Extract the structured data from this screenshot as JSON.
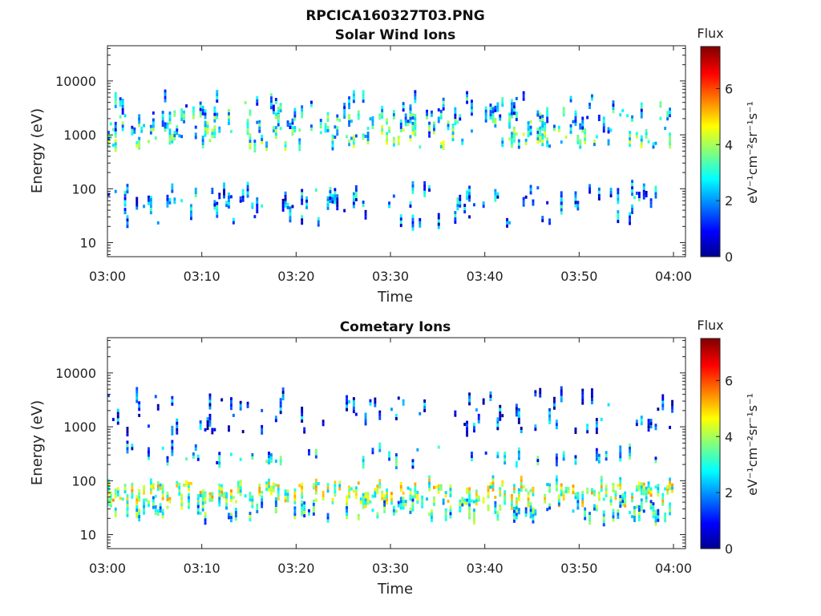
{
  "figure": {
    "title": "RPCICA160327T03.PNG"
  },
  "chart_data": [
    {
      "type": "heatmap",
      "title": "Solar Wind Ions",
      "xlabel": "Time",
      "ylabel": "Energy (eV)",
      "x_ticks": [
        "03:00",
        "03:10",
        "03:20",
        "03:30",
        "03:40",
        "03:50",
        "04:00"
      ],
      "x_range_minutes": [
        0,
        60
      ],
      "y_scale": "log",
      "y_ticks": [
        "10",
        "100",
        "1000",
        "10000"
      ],
      "y_range": [
        5.5,
        45000
      ],
      "colorbar": {
        "title": "Flux",
        "label": "eV⁻¹cm⁻²sr⁻¹s⁻¹",
        "ticks": [
          "0",
          "2",
          "4",
          "6"
        ],
        "range": [
          0,
          7.5
        ],
        "colormap": "jet"
      },
      "bands": [
        {
          "center_ev": 3500,
          "occupancy": 0.22,
          "mean_flux": 2.2
        },
        {
          "center_ev": 1800,
          "occupancy": 0.38,
          "mean_flux": 2.6
        },
        {
          "center_ev": 900,
          "occupancy": 0.42,
          "mean_flux": 3.1
        },
        {
          "center_ev": 70,
          "occupancy": 0.35,
          "mean_flux": 1.9
        },
        {
          "center_ev": 35,
          "occupancy": 0.12,
          "mean_flux": 1.8
        }
      ]
    },
    {
      "type": "heatmap",
      "title": "Cometary Ions",
      "xlabel": "Time",
      "ylabel": "Energy (eV)",
      "x_ticks": [
        "03:00",
        "03:10",
        "03:20",
        "03:30",
        "03:40",
        "03:50",
        "04:00"
      ],
      "x_range_minutes": [
        0,
        60
      ],
      "y_scale": "log",
      "y_ticks": [
        "10",
        "100",
        "1000",
        "10000"
      ],
      "y_range": [
        5.5,
        45000
      ],
      "colorbar": {
        "title": "Flux",
        "label": "eV⁻¹cm⁻²sr⁻¹s⁻¹",
        "ticks": [
          "0",
          "2",
          "4",
          "6"
        ],
        "range": [
          0,
          7.5
        ],
        "colormap": "jet"
      },
      "bands": [
        {
          "center_ev": 3000,
          "occupancy": 0.15,
          "mean_flux": 1.2
        },
        {
          "center_ev": 1200,
          "occupancy": 0.18,
          "mean_flux": 1.4
        },
        {
          "center_ev": 300,
          "occupancy": 0.2,
          "mean_flux": 2.3
        },
        {
          "center_ev": 60,
          "occupancy": 0.7,
          "mean_flux": 3.9
        },
        {
          "center_ev": 30,
          "occupancy": 0.45,
          "mean_flux": 2.8
        }
      ]
    }
  ]
}
